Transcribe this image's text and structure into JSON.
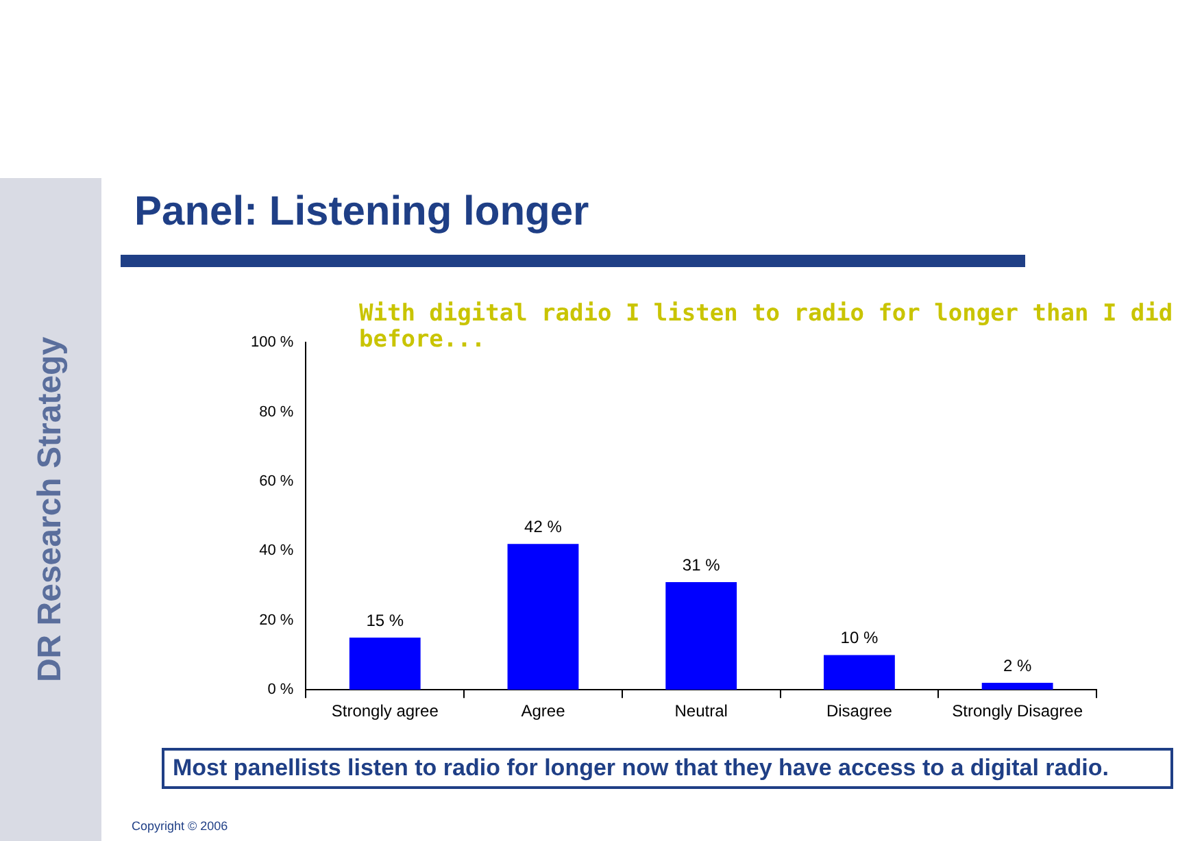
{
  "chart_data": {
    "type": "bar",
    "title": "Panel: Listening longer",
    "subtitle": "With digital radio I listen to radio for longer than I did before...",
    "categories": [
      "Strongly agree",
      "Agree",
      "Neutral",
      "Disagree",
      "Strongly Disagree"
    ],
    "values": [
      15,
      42,
      31,
      10,
      2
    ],
    "color": "#0000ff",
    "value_labels": [
      "15 %",
      "42 %",
      "31 %",
      "10 %",
      "2 %"
    ],
    "ylim": [
      0,
      100
    ],
    "yticks": [
      {
        "value": 0,
        "label": "0 %"
      },
      {
        "value": 20,
        "label": "20 %"
      },
      {
        "value": 40,
        "label": "40 %"
      },
      {
        "value": 60,
        "label": "60 %"
      },
      {
        "value": 80,
        "label": "80 %"
      },
      {
        "value": 100,
        "label": "100 %"
      }
    ],
    "grid": false,
    "legend": false,
    "annotations": [
      "DR Research Strategy",
      "Most panellists listen to radio for longer now that they have access to a digital radio.",
      "Copyright © 2006"
    ]
  }
}
